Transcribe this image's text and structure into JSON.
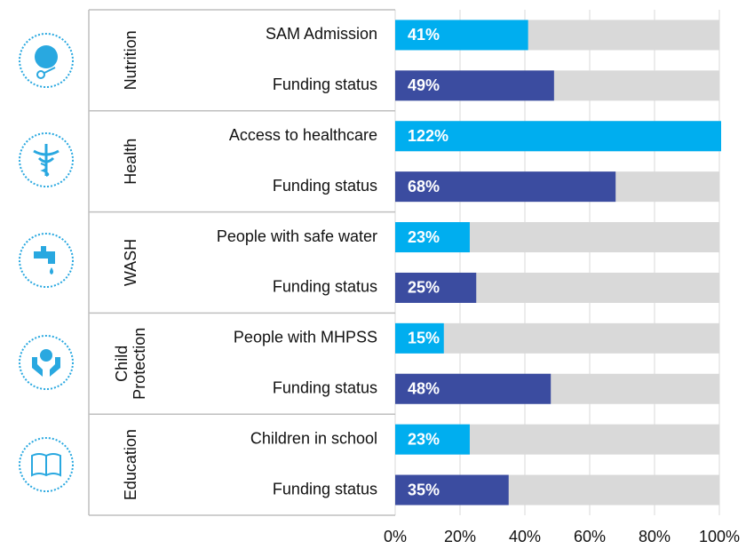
{
  "chart_data": {
    "type": "bar",
    "groups": [
      "Nutrition",
      "Health",
      "WASH",
      "Child Protection",
      "Education"
    ],
    "categories": [
      "SAM Admission",
      "Funding status",
      "Access to healthcare",
      "Funding status",
      "People with safe water",
      "Funding status",
      "People with MHPSS",
      "Funding status",
      "Children in school",
      "Funding status"
    ],
    "values": [
      41,
      49,
      122,
      68,
      23,
      25,
      15,
      48,
      23,
      35
    ],
    "value_labels": [
      "41%",
      "49%",
      "122%",
      "68%",
      "23%",
      "25%",
      "15%",
      "48%",
      "23%",
      "35%"
    ],
    "colors": [
      "#00aeef",
      "#3b4ca0",
      "#00aeef",
      "#3b4ca0",
      "#00aeef",
      "#3b4ca0",
      "#00aeef",
      "#3b4ca0",
      "#00aeef",
      "#3b4ca0"
    ],
    "background_color": "#d9d9d9",
    "xlim": [
      0,
      100
    ],
    "xticks": [
      {
        "value": 0,
        "label": "0%"
      },
      {
        "value": 20,
        "label": "20%"
      },
      {
        "value": 40,
        "label": "40%"
      },
      {
        "value": 60,
        "label": "60%"
      },
      {
        "value": 80,
        "label": "80%"
      },
      {
        "value": 100,
        "label": "100%"
      }
    ],
    "grid": true
  }
}
